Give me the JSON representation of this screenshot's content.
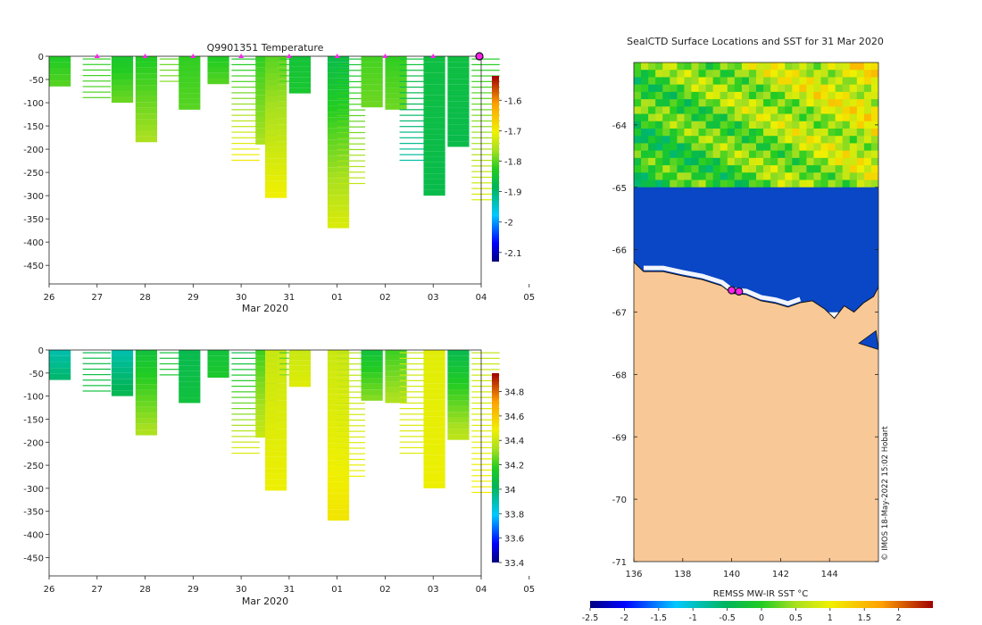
{
  "chart_data": [
    {
      "type": "heatmap",
      "panel": "temperature-profile",
      "title": "Q9901351  Temperature",
      "xlabel": "Mar 2020",
      "ylabel": "",
      "x_ticks": [
        "26",
        "27",
        "28",
        "29",
        "30",
        "31",
        "01",
        "02",
        "03",
        "04",
        "05"
      ],
      "y_ticks": [
        "0",
        "-50",
        "-100",
        "-150",
        "-200",
        "-250",
        "-300",
        "-350",
        "-400",
        "-450"
      ],
      "y_tick_values": [
        0,
        -50,
        -100,
        -150,
        -200,
        -250,
        -300,
        -350,
        -400,
        -450
      ],
      "ylim": [
        -490,
        0
      ],
      "colorbar_ticks": [
        "-1.6",
        "-1.7",
        "-1.8",
        "-1.9",
        "-2",
        "-2.1"
      ],
      "colorbar_values": [
        -1.6,
        -1.7,
        -1.8,
        -1.9,
        -2.0,
        -2.1
      ],
      "colorbar_range": [
        -2.13,
        -1.52
      ],
      "surfacing_days": [
        27,
        28,
        29,
        30,
        31,
        32,
        33,
        34,
        35
      ],
      "profiles": [
        {
          "day": 26.0,
          "max_depth": -65,
          "top": -1.83,
          "bottom": -1.8
        },
        {
          "day": 26.7,
          "max_depth": -95,
          "top": -1.82,
          "bottom": -1.8
        },
        {
          "day": 27.3,
          "max_depth": -100,
          "top": -1.84,
          "bottom": -1.79
        },
        {
          "day": 27.8,
          "max_depth": -185,
          "top": -1.83,
          "bottom": -1.76
        },
        {
          "day": 28.3,
          "max_depth": -60,
          "top": -1.8,
          "bottom": -1.78
        },
        {
          "day": 28.7,
          "max_depth": -115,
          "top": -1.82,
          "bottom": -1.8
        },
        {
          "day": 29.3,
          "max_depth": -60,
          "top": -1.83,
          "bottom": -1.8
        },
        {
          "day": 29.8,
          "max_depth": -230,
          "top": -1.84,
          "bottom": -1.69
        },
        {
          "day": 30.3,
          "max_depth": -190,
          "top": -1.82,
          "bottom": -1.76
        },
        {
          "day": 30.5,
          "max_depth": -305,
          "top": -1.8,
          "bottom": -1.7
        },
        {
          "day": 30.8,
          "max_depth": -60,
          "top": -1.83,
          "bottom": -1.8
        },
        {
          "day": 31.0,
          "max_depth": -80,
          "top": -1.85,
          "bottom": -1.84
        },
        {
          "day": 31.8,
          "max_depth": -370,
          "top": -1.87,
          "bottom": -1.72
        },
        {
          "day": 32.0,
          "max_depth": -280,
          "top": -1.85,
          "bottom": -1.74
        },
        {
          "day": 32.5,
          "max_depth": -110,
          "top": -1.81,
          "bottom": -1.79
        },
        {
          "day": 33.0,
          "max_depth": -115,
          "top": -1.82,
          "bottom": -1.79
        },
        {
          "day": 33.3,
          "max_depth": -230,
          "top": -1.85,
          "bottom": -1.93
        },
        {
          "day": 33.8,
          "max_depth": -300,
          "top": -1.86,
          "bottom": -1.87
        },
        {
          "day": 34.3,
          "max_depth": -195,
          "top": -1.86,
          "bottom": -1.87
        },
        {
          "day": 34.8,
          "max_depth": -315,
          "top": -1.83,
          "bottom": -1.72
        }
      ]
    },
    {
      "type": "heatmap",
      "panel": "salinity-profile",
      "title": "",
      "xlabel": "Mar 2020",
      "ylabel": "",
      "x_ticks": [
        "26",
        "27",
        "28",
        "29",
        "30",
        "31",
        "01",
        "02",
        "03",
        "04",
        "05"
      ],
      "y_ticks": [
        "0",
        "-50",
        "-100",
        "-150",
        "-200",
        "-250",
        "-300",
        "-350",
        "-400",
        "-450"
      ],
      "y_tick_values": [
        0,
        -50,
        -100,
        -150,
        -200,
        -250,
        -300,
        -350,
        -400,
        -450
      ],
      "ylim": [
        -490,
        0
      ],
      "colorbar_ticks": [
        "34.8",
        "34.6",
        "34.4",
        "34.2",
        "34",
        "33.8",
        "33.6",
        "33.4"
      ],
      "colorbar_values": [
        34.8,
        34.6,
        34.4,
        34.2,
        34.0,
        33.8,
        33.6,
        33.4
      ],
      "colorbar_range": [
        33.4,
        34.95
      ],
      "profiles": [
        {
          "day": 26.0,
          "max_depth": -65,
          "top": 33.9,
          "bottom": 34.0
        },
        {
          "day": 26.7,
          "max_depth": -95,
          "top": 34.05,
          "bottom": 34.1
        },
        {
          "day": 27.3,
          "max_depth": -100,
          "top": 33.9,
          "bottom": 34.05
        },
        {
          "day": 27.8,
          "max_depth": -185,
          "top": 34.1,
          "bottom": 34.35
        },
        {
          "day": 28.3,
          "max_depth": -60,
          "top": 34.1,
          "bottom": 34.15
        },
        {
          "day": 28.7,
          "max_depth": -115,
          "top": 34.05,
          "bottom": 34.1
        },
        {
          "day": 29.3,
          "max_depth": -60,
          "top": 34.1,
          "bottom": 34.15
        },
        {
          "day": 29.8,
          "max_depth": -230,
          "top": 34.05,
          "bottom": 34.45
        },
        {
          "day": 30.3,
          "max_depth": -190,
          "top": 34.2,
          "bottom": 34.4
        },
        {
          "day": 30.5,
          "max_depth": -305,
          "top": 34.4,
          "bottom": 34.48
        },
        {
          "day": 30.8,
          "max_depth": -60,
          "top": 34.2,
          "bottom": 34.3
        },
        {
          "day": 31.0,
          "max_depth": -80,
          "top": 34.4,
          "bottom": 34.45
        },
        {
          "day": 31.8,
          "max_depth": -370,
          "top": 34.4,
          "bottom": 34.52
        },
        {
          "day": 32.0,
          "max_depth": -280,
          "top": 34.35,
          "bottom": 34.48
        },
        {
          "day": 32.5,
          "max_depth": -110,
          "top": 34.1,
          "bottom": 34.3
        },
        {
          "day": 33.0,
          "max_depth": -115,
          "top": 34.2,
          "bottom": 34.35
        },
        {
          "day": 33.3,
          "max_depth": -230,
          "top": 34.4,
          "bottom": 34.45
        },
        {
          "day": 33.8,
          "max_depth": -300,
          "top": 34.45,
          "bottom": 34.48
        },
        {
          "day": 34.3,
          "max_depth": -195,
          "top": 34.05,
          "bottom": 34.38
        },
        {
          "day": 34.8,
          "max_depth": -315,
          "top": 34.38,
          "bottom": 34.5
        }
      ]
    },
    {
      "type": "heatmap",
      "panel": "sst-map",
      "title": "SealCTD Surface Locations and SST for 31 Mar 2020",
      "x_ticks": [
        "136",
        "138",
        "140",
        "142",
        "144"
      ],
      "x_tick_values": [
        136,
        138,
        140,
        142,
        144
      ],
      "y_ticks": [
        "-64",
        "-65",
        "-66",
        "-67",
        "-68",
        "-69",
        "-70",
        "-71"
      ],
      "y_tick_values": [
        -64,
        -65,
        -66,
        -67,
        -68,
        -69,
        -70,
        -71
      ],
      "xlim": [
        136,
        146
      ],
      "ylim": [
        -71,
        -63
      ],
      "colorbar_label": "REMSS MW-IR SST °C",
      "colorbar_ticks": [
        "-2.5",
        "-2",
        "-1.5",
        "-1",
        "-0.5",
        "0",
        "0.5",
        "1",
        "1.5",
        "2"
      ],
      "colorbar_values": [
        -2.5,
        -2,
        -1.5,
        -1,
        -0.5,
        0,
        0.5,
        1,
        1.5,
        2
      ],
      "colorbar_range": [
        -2.5,
        2.5
      ],
      "regions": {
        "north_sst_range": [
          -0.6,
          1.5
        ],
        "shelf_band_sst": -2.0,
        "ice_edge_lat": -65.0
      },
      "coastline": [
        [
          136,
          -66.2
        ],
        [
          136.4,
          -66.35
        ],
        [
          137.2,
          -66.35
        ],
        [
          138.0,
          -66.42
        ],
        [
          138.8,
          -66.48
        ],
        [
          139.6,
          -66.58
        ],
        [
          140.0,
          -66.7
        ],
        [
          140.6,
          -66.72
        ],
        [
          141.2,
          -66.82
        ],
        [
          141.8,
          -66.86
        ],
        [
          142.3,
          -66.92
        ],
        [
          142.8,
          -66.85
        ],
        [
          143.3,
          -66.82
        ],
        [
          143.8,
          -66.95
        ],
        [
          144.2,
          -67.1
        ],
        [
          144.6,
          -66.9
        ],
        [
          145.0,
          -67.0
        ],
        [
          145.4,
          -66.85
        ],
        [
          145.8,
          -66.75
        ],
        [
          146.0,
          -66.6
        ]
      ],
      "seal_positions": [
        [
          140.0,
          -66.65
        ],
        [
          140.3,
          -66.67
        ]
      ],
      "land_color": "#f8c896",
      "ocean_ice_color": "#0a47c6",
      "credit": "© IMOS 18-May-2022 15:02 Hobart"
    }
  ],
  "colors": {
    "seal_marker": "#ff22ee",
    "seal_marker_edge": "#111111",
    "axis": "#222222"
  }
}
